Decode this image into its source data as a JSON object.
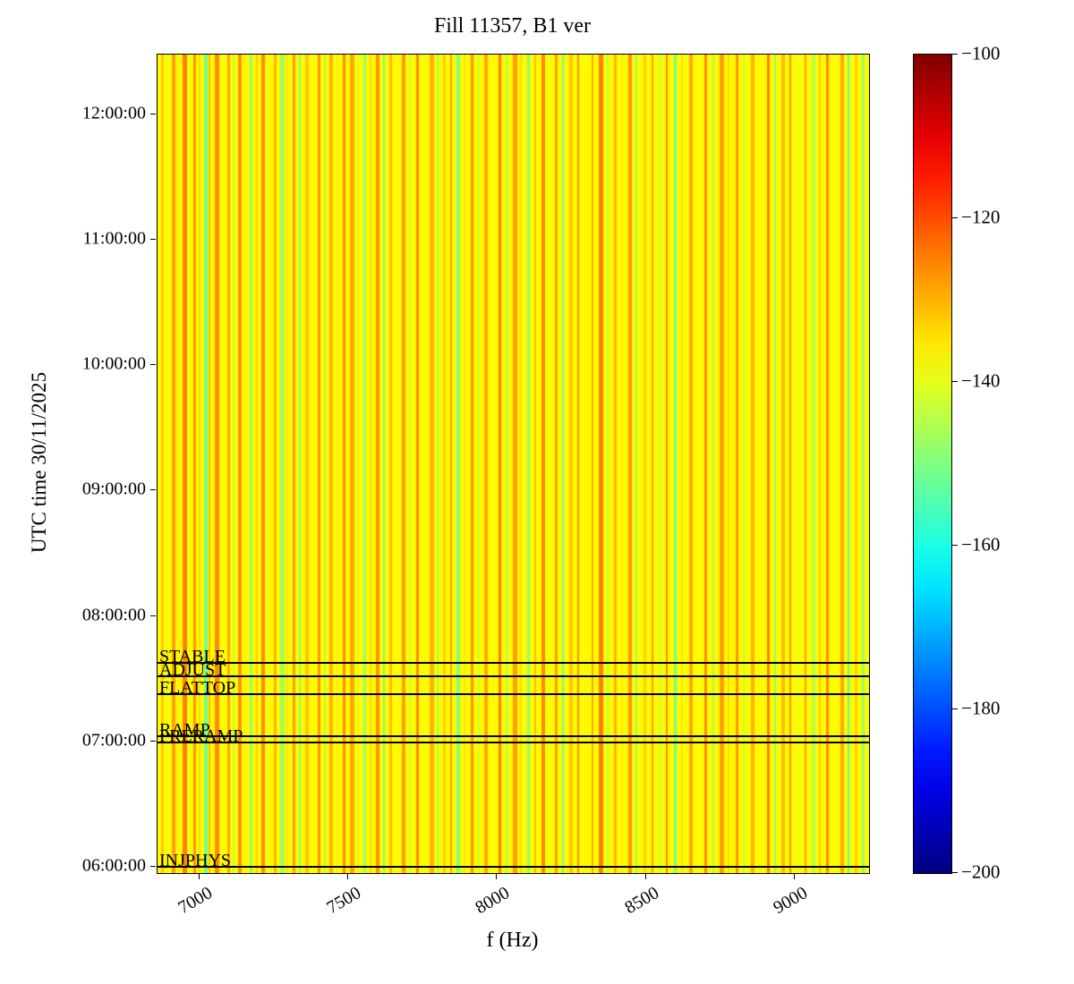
{
  "chart_data": {
    "type": "heatmap",
    "title": "Fill 11357, B1 ver",
    "xlabel": "f (Hz)",
    "ylabel": "UTC time 30/11/2025",
    "x_range_hz": [
      6860,
      9250
    ],
    "x_ticks": [
      {
        "value": 7000,
        "label": "7000"
      },
      {
        "value": 7500,
        "label": "7500"
      },
      {
        "value": 8000,
        "label": "8000"
      },
      {
        "value": 8500,
        "label": "8500"
      },
      {
        "value": 9000,
        "label": "9000"
      }
    ],
    "y_range_hours": [
      5.95,
      12.476
    ],
    "y_ticks": [
      {
        "hour": 6,
        "label": "06:00:00"
      },
      {
        "hour": 7,
        "label": "07:00:00"
      },
      {
        "hour": 8,
        "label": "08:00:00"
      },
      {
        "hour": 9,
        "label": "09:00:00"
      },
      {
        "hour": 10,
        "label": "10:00:00"
      },
      {
        "hour": 11,
        "label": "11:00:00"
      },
      {
        "hour": 12,
        "label": "12:00:00"
      }
    ],
    "colorbar": {
      "colormap": "jet",
      "vmin": -200,
      "vmax": -100,
      "ticks": [
        {
          "value": -100,
          "label": "−100"
        },
        {
          "value": -120,
          "label": "−120"
        },
        {
          "value": -140,
          "label": "−140"
        },
        {
          "value": -160,
          "label": "−160"
        },
        {
          "value": -180,
          "label": "−180"
        },
        {
          "value": -200,
          "label": "−200"
        }
      ]
    },
    "annotations": [
      {
        "label": "STABLE",
        "time_hours": 7.625
      },
      {
        "label": "ADJUST",
        "time_hours": 7.517
      },
      {
        "label": "FLATTOP",
        "time_hours": 7.377
      },
      {
        "label": "RAMP",
        "time_hours": 7.042
      },
      {
        "label": "PRERAMP",
        "time_hours": 6.992
      },
      {
        "label": "INJPHYS",
        "time_hours": 6.0
      }
    ],
    "base_value_db": -137,
    "stripes_format": [
      "x_fraction",
      "width_px",
      "value_db"
    ],
    "stripes": [
      [
        0.005,
        3,
        -132
      ],
      [
        0.012,
        2,
        -140
      ],
      [
        0.02,
        4,
        -128
      ],
      [
        0.028,
        2,
        -136
      ],
      [
        0.035,
        5,
        -125
      ],
      [
        0.043,
        2,
        -139
      ],
      [
        0.05,
        3,
        -127
      ],
      [
        0.058,
        2,
        -134
      ],
      [
        0.065,
        4,
        -152
      ],
      [
        0.072,
        2,
        -131
      ],
      [
        0.08,
        5,
        -126
      ],
      [
        0.09,
        2,
        -138
      ],
      [
        0.098,
        3,
        -129
      ],
      [
        0.106,
        2,
        -144
      ],
      [
        0.113,
        4,
        -127
      ],
      [
        0.122,
        2,
        -136
      ],
      [
        0.13,
        3,
        -148
      ],
      [
        0.138,
        2,
        -133
      ],
      [
        0.146,
        4,
        -126
      ],
      [
        0.155,
        2,
        -139
      ],
      [
        0.163,
        3,
        -130
      ],
      [
        0.172,
        5,
        -147
      ],
      [
        0.181,
        2,
        -135
      ],
      [
        0.19,
        3,
        -128
      ],
      [
        0.199,
        2,
        -150
      ],
      [
        0.207,
        4,
        -132
      ],
      [
        0.216,
        2,
        -138
      ],
      [
        0.225,
        3,
        -127
      ],
      [
        0.234,
        2,
        -145
      ],
      [
        0.242,
        4,
        -130
      ],
      [
        0.252,
        2,
        -136
      ],
      [
        0.261,
        3,
        -126
      ],
      [
        0.27,
        5,
        -129
      ],
      [
        0.28,
        2,
        -141
      ],
      [
        0.289,
        3,
        -148
      ],
      [
        0.298,
        2,
        -134
      ],
      [
        0.307,
        4,
        -127
      ],
      [
        0.317,
        2,
        -152
      ],
      [
        0.326,
        3,
        -131
      ],
      [
        0.335,
        2,
        -137
      ],
      [
        0.344,
        4,
        -128
      ],
      [
        0.354,
        2,
        -143
      ],
      [
        0.363,
        3,
        -126
      ],
      [
        0.373,
        2,
        -139
      ],
      [
        0.382,
        5,
        -130
      ],
      [
        0.392,
        2,
        -147
      ],
      [
        0.401,
        3,
        -133
      ],
      [
        0.411,
        2,
        -128
      ],
      [
        0.42,
        4,
        -150
      ],
      [
        0.43,
        2,
        -135
      ],
      [
        0.44,
        3,
        -127
      ],
      [
        0.45,
        2,
        -142
      ],
      [
        0.459,
        4,
        -129
      ],
      [
        0.469,
        2,
        -138
      ],
      [
        0.479,
        3,
        -125
      ],
      [
        0.489,
        2,
        -146
      ],
      [
        0.499,
        5,
        -128
      ],
      [
        0.509,
        2,
        -134
      ],
      [
        0.519,
        3,
        -149
      ],
      [
        0.529,
        2,
        -131
      ],
      [
        0.539,
        4,
        -126
      ],
      [
        0.549,
        2,
        -140
      ],
      [
        0.559,
        3,
        -128
      ],
      [
        0.569,
        2,
        -153
      ],
      [
        0.579,
        4,
        -132
      ],
      [
        0.59,
        2,
        -127
      ],
      [
        0.6,
        3,
        -137
      ],
      [
        0.61,
        2,
        -129
      ],
      [
        0.62,
        5,
        -125
      ],
      [
        0.631,
        2,
        -144
      ],
      [
        0.641,
        3,
        -130
      ],
      [
        0.652,
        2,
        -136
      ],
      [
        0.662,
        4,
        -127
      ],
      [
        0.672,
        2,
        -148
      ],
      [
        0.683,
        3,
        -133
      ],
      [
        0.694,
        2,
        -128
      ],
      [
        0.704,
        4,
        -141
      ],
      [
        0.715,
        2,
        -126
      ],
      [
        0.726,
        3,
        -151
      ],
      [
        0.736,
        2,
        -135
      ],
      [
        0.747,
        4,
        -129
      ],
      [
        0.758,
        2,
        -138
      ],
      [
        0.769,
        3,
        -126
      ],
      [
        0.78,
        2,
        -146
      ],
      [
        0.79,
        5,
        -128
      ],
      [
        0.801,
        2,
        -134
      ],
      [
        0.812,
        3,
        -127
      ],
      [
        0.823,
        2,
        -143
      ],
      [
        0.834,
        4,
        -130
      ],
      [
        0.845,
        2,
        -137
      ],
      [
        0.856,
        3,
        -125
      ],
      [
        0.867,
        2,
        -149
      ],
      [
        0.877,
        4,
        -131
      ],
      [
        0.888,
        2,
        -127
      ],
      [
        0.899,
        3,
        -139
      ],
      [
        0.909,
        2,
        -128
      ],
      [
        0.919,
        4,
        -145
      ],
      [
        0.93,
        2,
        -132
      ],
      [
        0.94,
        3,
        -126
      ],
      [
        0.95,
        2,
        -138
      ],
      [
        0.96,
        4,
        -129
      ],
      [
        0.97,
        2,
        -154
      ],
      [
        0.98,
        3,
        -133
      ],
      [
        0.99,
        3,
        -148
      ]
    ]
  }
}
